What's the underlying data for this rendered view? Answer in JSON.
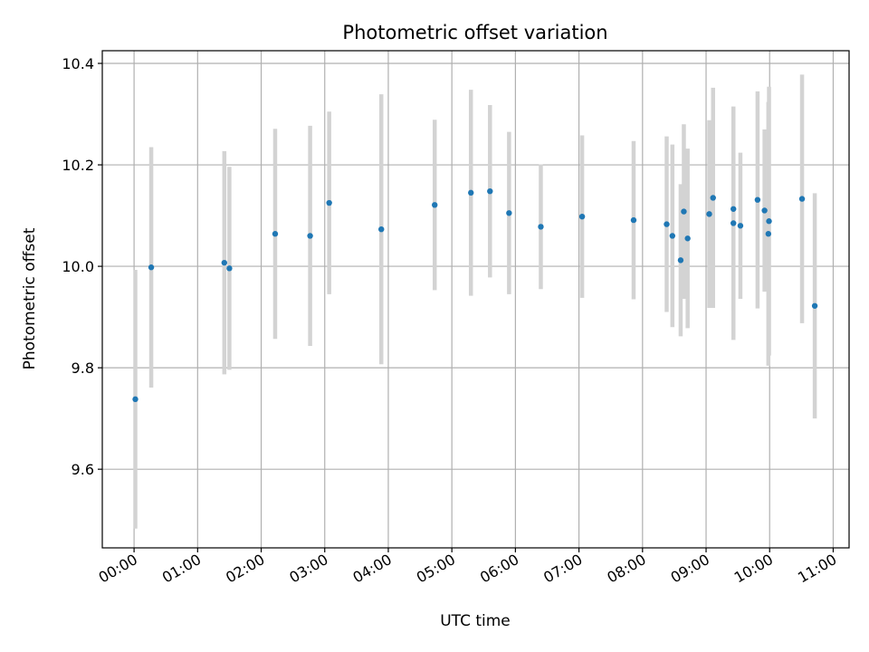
{
  "chart_data": {
    "type": "scatter",
    "title": "Photometric offset variation",
    "xlabel": "UTC time",
    "ylabel": "Photometric offset",
    "x_unit": "hours",
    "xlim": [
      -0.5,
      11.25
    ],
    "ylim": [
      9.445,
      10.425
    ],
    "x_ticks": [
      0,
      1,
      2,
      3,
      4,
      5,
      6,
      7,
      8,
      9,
      10,
      11
    ],
    "x_tick_labels": [
      "00:00",
      "01:00",
      "02:00",
      "03:00",
      "04:00",
      "05:00",
      "06:00",
      "07:00",
      "08:00",
      "09:00",
      "10:00",
      "11:00"
    ],
    "y_ticks": [
      9.6,
      9.8,
      10.0,
      10.2,
      10.4
    ],
    "y_tick_labels": [
      "9.6",
      "9.8",
      "10.0",
      "10.2",
      "10.4"
    ],
    "grid": true,
    "colors": {
      "point": "#1f77b4",
      "errorbar": "#d3d3d3",
      "grid": "#b0b0b0"
    },
    "points": [
      {
        "x": 0.02,
        "y": 9.738,
        "err": 0.255
      },
      {
        "x": 0.27,
        "y": 9.998,
        "err": 0.237
      },
      {
        "x": 1.42,
        "y": 10.007,
        "err": 0.22
      },
      {
        "x": 1.5,
        "y": 9.996,
        "err": 0.2
      },
      {
        "x": 2.22,
        "y": 10.064,
        "err": 0.207
      },
      {
        "x": 2.77,
        "y": 10.06,
        "err": 0.217
      },
      {
        "x": 3.07,
        "y": 10.125,
        "err": 0.18
      },
      {
        "x": 3.89,
        "y": 10.073,
        "err": 0.266
      },
      {
        "x": 4.73,
        "y": 10.121,
        "err": 0.168
      },
      {
        "x": 5.3,
        "y": 10.145,
        "err": 0.203
      },
      {
        "x": 5.6,
        "y": 10.148,
        "err": 0.17
      },
      {
        "x": 5.9,
        "y": 10.105,
        "err": 0.16
      },
      {
        "x": 6.4,
        "y": 10.078,
        "err": 0.123
      },
      {
        "x": 7.05,
        "y": 10.098,
        "err": 0.16
      },
      {
        "x": 7.86,
        "y": 10.091,
        "err": 0.156
      },
      {
        "x": 8.38,
        "y": 10.083,
        "err": 0.173
      },
      {
        "x": 8.47,
        "y": 10.06,
        "err": 0.18
      },
      {
        "x": 8.6,
        "y": 10.012,
        "err": 0.15
      },
      {
        "x": 8.65,
        "y": 10.108,
        "err": 0.172
      },
      {
        "x": 8.71,
        "y": 10.055,
        "err": 0.177
      },
      {
        "x": 9.05,
        "y": 10.103,
        "err": 0.185
      },
      {
        "x": 9.11,
        "y": 10.135,
        "err": 0.217
      },
      {
        "x": 9.43,
        "y": 10.113,
        "err": 0.2
      },
      {
        "x": 9.43,
        "y": 10.085,
        "err": 0.23
      },
      {
        "x": 9.54,
        "y": 10.08,
        "err": 0.144
      },
      {
        "x": 9.81,
        "y": 10.131,
        "err": 0.214
      },
      {
        "x": 9.92,
        "y": 10.11,
        "err": 0.16
      },
      {
        "x": 9.98,
        "y": 10.064,
        "err": 0.26
      },
      {
        "x": 9.99,
        "y": 10.089,
        "err": 0.265
      },
      {
        "x": 10.51,
        "y": 10.133,
        "err": 0.245
      },
      {
        "x": 10.71,
        "y": 9.922,
        "err": 0.222
      }
    ]
  }
}
